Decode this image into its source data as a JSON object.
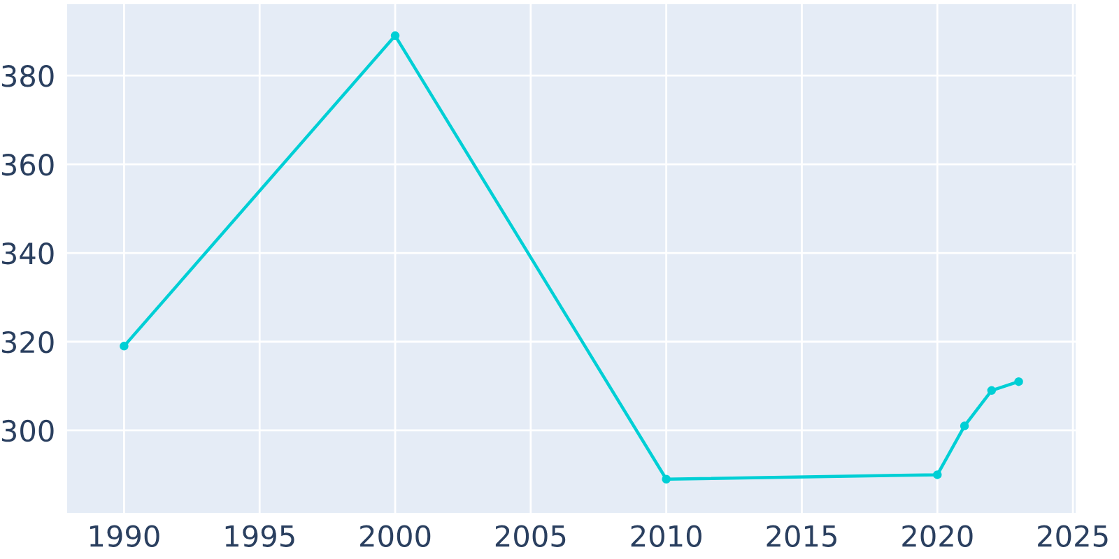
{
  "chart_data": {
    "type": "line",
    "x": [
      1990,
      2000,
      2010,
      2020,
      2021,
      2022,
      2023
    ],
    "series": [
      {
        "color": "#00cfd5",
        "values": [
          319,
          389,
          289,
          290,
          301,
          309,
          311
        ]
      }
    ],
    "xlim": [
      1987.9,
      2025.1
    ],
    "ylim": [
      281.4,
      396.1
    ],
    "xticks": [
      1990,
      1995,
      2000,
      2005,
      2010,
      2015,
      2020,
      2025
    ],
    "yticks": [
      300,
      320,
      340,
      360,
      380
    ],
    "grid": true,
    "marker": "circle",
    "line_style": "solid"
  }
}
